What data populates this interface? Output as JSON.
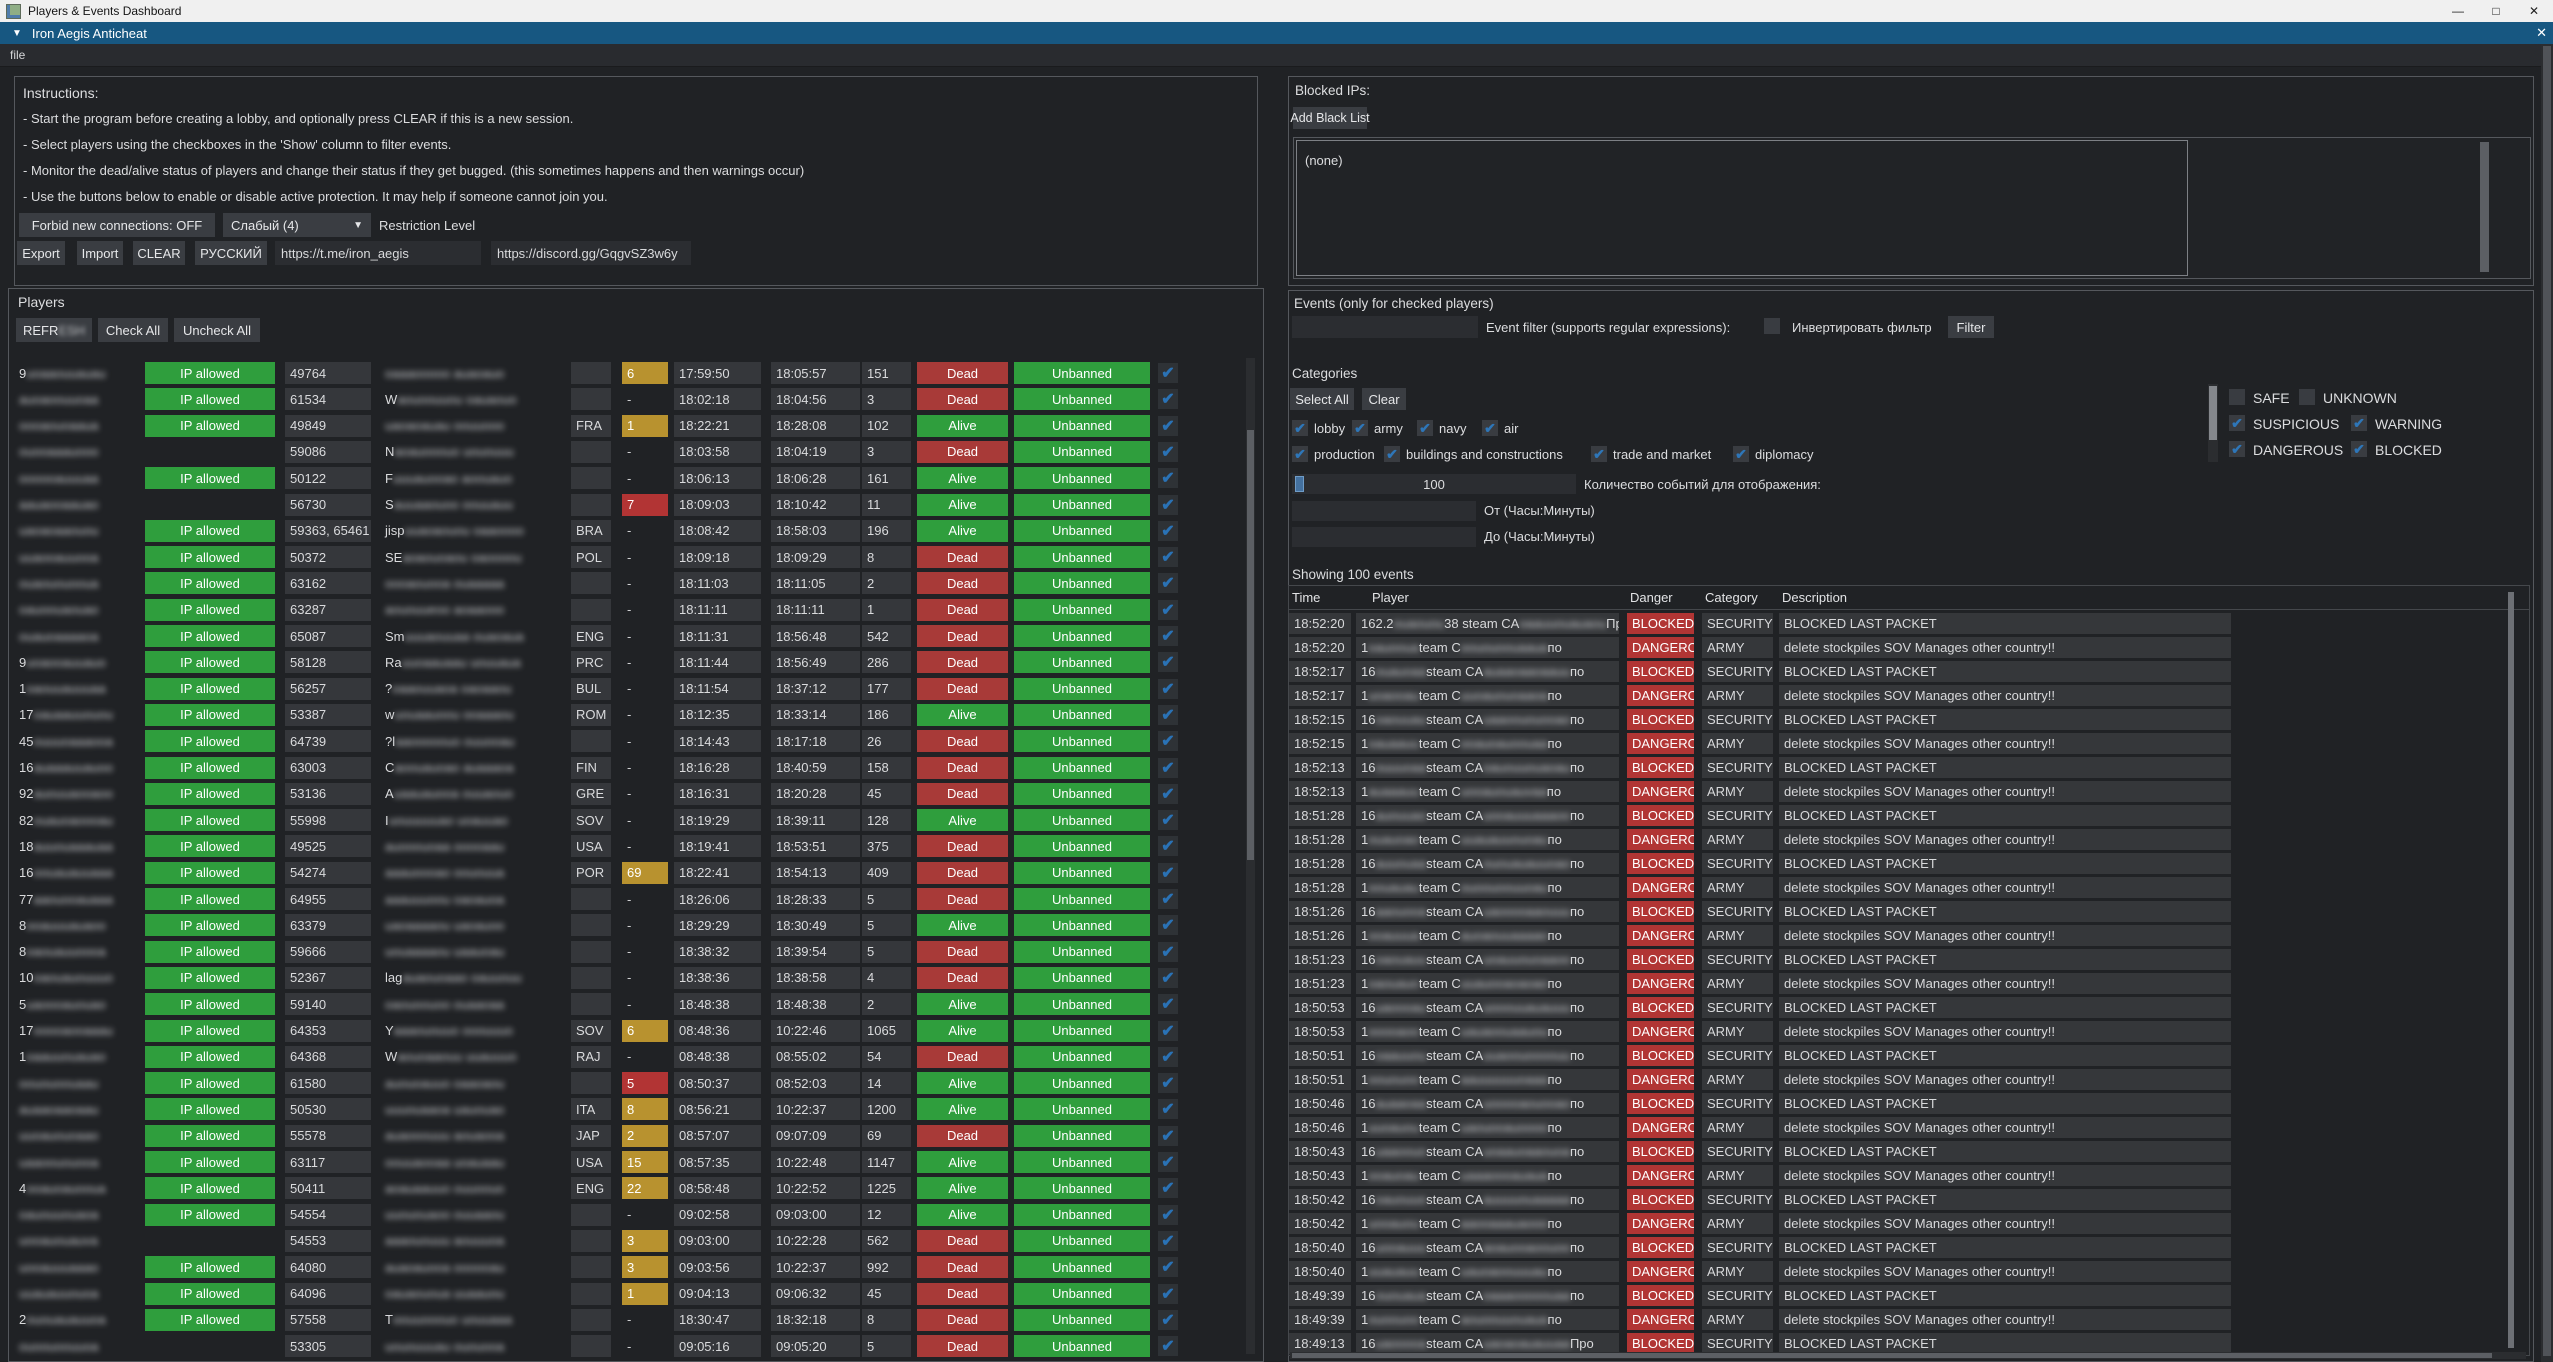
{
  "window": {
    "title": "Players & Events Dashboard",
    "app_header": "Iron Aegis Anticheat",
    "menu_file": "file",
    "minimize": "—",
    "maximize": "□",
    "close": "✕"
  },
  "instructions": {
    "title": "Instructions:",
    "lines": [
      "- Start the program before creating a lobby, and optionally press CLEAR if this is a new session.",
      "- Select players using the checkboxes in the 'Show' column to filter events.",
      "- Monitor the dead/alive status of players and change their status if they get bugged. (this sometimes happens and then warnings occur)",
      "- Use the buttons below to enable or disable active protection. It may help if someone cannot join you."
    ],
    "forbid_button": "Forbid new connections: OFF",
    "restriction_value": "Слабый (4)",
    "restriction_label": "Restriction Level",
    "buttons": [
      "Export",
      "Import",
      "CLEAR",
      "РУССКИЙ"
    ],
    "links": [
      "https://t.me/iron_aegis",
      "https://discord.gg/GqgvSZ3w6y"
    ]
  },
  "players_panel": {
    "title": "Players",
    "refresh_visible": "REFR",
    "refresh_blurred": "ESH",
    "check_all": "Check All",
    "uncheck_all": "Uncheck All",
    "ip_allowed_label": "IP allowed",
    "unbanned_label": "Unbanned",
    "rows": [
      {
        "p": "9",
        "id": "49764",
        "c": "",
        "w": "6",
        "wl": "y",
        "t1": "17:59:50",
        "t2": "18:05:57",
        "n": "151",
        "s": "Dead",
        "ip": true
      },
      {
        "id": "61534",
        "q": "W",
        "c": "",
        "w": "-",
        "t1": "18:02:18",
        "t2": "18:04:56",
        "n": "3",
        "s": "Dead",
        "ip": true
      },
      {
        "id": "49849",
        "c": "FRA",
        "w": "1",
        "wl": "y",
        "t1": "18:22:21",
        "t2": "18:28:08",
        "n": "102",
        "s": "Alive",
        "ip": true
      },
      {
        "id": "59086",
        "q": "N",
        "c": "",
        "w": "-",
        "t1": "18:03:58",
        "t2": "18:04:19",
        "n": "3",
        "s": "Dead",
        "ip": false
      },
      {
        "id": "50122",
        "q": "F",
        "c": "",
        "w": "-",
        "t1": "18:06:13",
        "t2": "18:06:28",
        "n": "161",
        "s": "Alive",
        "ip": true
      },
      {
        "id": "56730",
        "q": "S",
        "c": "",
        "w": "7",
        "wl": "r",
        "t1": "18:09:03",
        "t2": "18:10:42",
        "n": "11",
        "s": "Alive",
        "ip": false
      },
      {
        "id": "59363, 65461",
        "q": "jisp",
        "c": "BRA",
        "w": "-",
        "t1": "18:08:42",
        "t2": "18:58:03",
        "n": "196",
        "s": "Alive",
        "ip": true
      },
      {
        "id": "50372",
        "q": "SE",
        "c": "POL",
        "w": "-",
        "t1": "18:09:18",
        "t2": "18:09:29",
        "n": "8",
        "s": "Dead",
        "ip": true
      },
      {
        "id": "63162",
        "c": "",
        "w": "-",
        "t1": "18:11:03",
        "t2": "18:11:05",
        "n": "2",
        "s": "Dead",
        "ip": true
      },
      {
        "id": "63287",
        "c": "",
        "w": "-",
        "t1": "18:11:11",
        "t2": "18:11:11",
        "n": "1",
        "s": "Dead",
        "ip": true
      },
      {
        "id": "65087",
        "q": "Sm",
        "c": "ENG",
        "w": "-",
        "t1": "18:11:31",
        "t2": "18:56:48",
        "n": "542",
        "s": "Dead",
        "ip": true
      },
      {
        "p": "9",
        "id": "58128",
        "q": "Ra",
        "c": "PRC",
        "w": "-",
        "t1": "18:11:44",
        "t2": "18:56:49",
        "n": "286",
        "s": "Dead",
        "ip": true
      },
      {
        "p": "1",
        "id": "56257",
        "q": "?",
        "c": "BUL",
        "w": "-",
        "t1": "18:11:54",
        "t2": "18:37:12",
        "n": "177",
        "s": "Dead",
        "ip": true
      },
      {
        "p": "17",
        "id": "53387",
        "q": "w",
        "c": "ROM",
        "w": "-",
        "t1": "18:12:35",
        "t2": "18:33:14",
        "n": "186",
        "s": "Alive",
        "ip": true
      },
      {
        "p": "45",
        "id": "64739",
        "q": "?l",
        "c": "",
        "w": "-",
        "t1": "18:14:43",
        "t2": "18:17:18",
        "n": "26",
        "s": "Dead",
        "ip": true
      },
      {
        "p": "16",
        "id": "63003",
        "q": "C",
        "c": "FIN",
        "w": "-",
        "t1": "18:16:28",
        "t2": "18:40:59",
        "n": "158",
        "s": "Dead",
        "ip": true
      },
      {
        "p": "92",
        "id": "53136",
        "q": "A",
        "c": "GRE",
        "w": "-",
        "t1": "18:16:31",
        "t2": "18:20:28",
        "n": "45",
        "s": "Dead",
        "ip": true
      },
      {
        "p": "82",
        "id": "55998",
        "q": "I",
        "c": "SOV",
        "w": "-",
        "t1": "18:19:29",
        "t2": "18:39:11",
        "n": "128",
        "s": "Alive",
        "ip": true
      },
      {
        "p": "18",
        "id": "49525",
        "c": "USA",
        "w": "-",
        "t1": "18:19:41",
        "t2": "18:53:51",
        "n": "375",
        "s": "Dead",
        "ip": true
      },
      {
        "p": "16",
        "id": "54274",
        "c": "POR",
        "w": "69",
        "wl": "y",
        "t1": "18:22:41",
        "t2": "18:54:13",
        "n": "409",
        "s": "Dead",
        "ip": true
      },
      {
        "p": "77",
        "id": "64955",
        "c": "",
        "w": "-",
        "t1": "18:26:06",
        "t2": "18:28:33",
        "n": "5",
        "s": "Dead",
        "ip": true
      },
      {
        "p": "8",
        "id": "63379",
        "c": "",
        "w": "-",
        "t1": "18:29:29",
        "t2": "18:30:49",
        "n": "5",
        "s": "Alive",
        "ip": true
      },
      {
        "p": "8",
        "id": "59666",
        "c": "",
        "w": "-",
        "t1": "18:38:32",
        "t2": "18:39:54",
        "n": "5",
        "s": "Dead",
        "ip": true
      },
      {
        "p": "10",
        "id": "52367",
        "q": "lag",
        "c": "",
        "w": "-",
        "t1": "18:38:36",
        "t2": "18:38:58",
        "n": "4",
        "s": "Dead",
        "ip": true
      },
      {
        "p": "5",
        "id": "59140",
        "c": "",
        "w": "-",
        "t1": "18:48:38",
        "t2": "18:48:38",
        "n": "2",
        "s": "Alive",
        "ip": true
      },
      {
        "p": "17",
        "id": "64353",
        "q": "Y",
        "c": "SOV",
        "w": "6",
        "wl": "y",
        "t1": "08:48:36",
        "t2": "10:22:46",
        "n": "1065",
        "s": "Alive",
        "ip": true
      },
      {
        "p": "1",
        "id": "64368",
        "q": "W",
        "c": "RAJ",
        "w": "-",
        "t1": "08:48:38",
        "t2": "08:55:02",
        "n": "54",
        "s": "Dead",
        "ip": true
      },
      {
        "id": "61580",
        "c": "",
        "w": "5",
        "wl": "r",
        "t1": "08:50:37",
        "t2": "08:52:03",
        "n": "14",
        "s": "Alive",
        "ip": true
      },
      {
        "id": "50530",
        "c": "ITA",
        "w": "8",
        "wl": "y",
        "t1": "08:56:21",
        "t2": "10:22:37",
        "n": "1200",
        "s": "Alive",
        "ip": true
      },
      {
        "id": "55578",
        "c": "JAP",
        "w": "2",
        "wl": "y",
        "t1": "08:57:07",
        "t2": "09:07:09",
        "n": "69",
        "s": "Dead",
        "ip": true
      },
      {
        "id": "63117",
        "c": "USA",
        "w": "15",
        "wl": "y",
        "t1": "08:57:35",
        "t2": "10:22:48",
        "n": "1147",
        "s": "Alive",
        "ip": true
      },
      {
        "p": "4",
        "id": "50411",
        "c": "ENG",
        "w": "22",
        "wl": "y",
        "t1": "08:58:48",
        "t2": "10:22:52",
        "n": "1225",
        "s": "Alive",
        "ip": true
      },
      {
        "id": "54554",
        "c": "",
        "w": "-",
        "t1": "09:02:58",
        "t2": "09:03:00",
        "n": "12",
        "s": "Alive",
        "ip": true
      },
      {
        "id": "54553",
        "c": "",
        "w": "3",
        "wl": "y",
        "t1": "09:03:00",
        "t2": "10:22:28",
        "n": "562",
        "s": "Dead",
        "ip": false
      },
      {
        "id": "64080",
        "c": "",
        "w": "3",
        "wl": "y",
        "t1": "09:03:56",
        "t2": "10:22:37",
        "n": "992",
        "s": "Dead",
        "ip": true
      },
      {
        "id": "64096",
        "c": "",
        "w": "1",
        "wl": "y",
        "t1": "09:04:13",
        "t2": "09:06:32",
        "n": "45",
        "s": "Dead",
        "ip": true
      },
      {
        "p": "2",
        "id": "57558",
        "q": "T",
        "c": "",
        "w": "-",
        "t1": "18:30:47",
        "t2": "18:32:18",
        "n": "8",
        "s": "Dead",
        "ip": true
      },
      {
        "id": "53305",
        "c": "",
        "w": "-",
        "t1": "09:05:16",
        "t2": "09:05:20",
        "n": "5",
        "s": "Dead",
        "ip": false
      }
    ]
  },
  "blocked_ips": {
    "label": "Blocked IPs:",
    "add_button": "Add Black List",
    "empty_text": "(none)"
  },
  "events_panel": {
    "title": "Events (only for checked players)",
    "filter_label": "Event filter (supports regular expressions):",
    "invert_label": "Инвертировать фильтр",
    "filter_button": "Filter",
    "categories_label": "Categories",
    "select_all": "Select All",
    "clear": "Clear",
    "categories": [
      {
        "label": "lobby",
        "checked": true
      },
      {
        "label": "army",
        "checked": true
      },
      {
        "label": "navy",
        "checked": true
      },
      {
        "label": "air",
        "checked": true
      },
      {
        "label": "production",
        "checked": true
      },
      {
        "label": "buildings and constructions",
        "checked": true
      },
      {
        "label": "trade and market",
        "checked": true
      },
      {
        "label": "diplomacy",
        "checked": true
      }
    ],
    "severities": [
      {
        "label": "SAFE",
        "checked": false
      },
      {
        "label": "UNKNOWN",
        "checked": false
      },
      {
        "label": "SUSPICIOUS",
        "checked": true
      },
      {
        "label": "WARNING",
        "checked": true
      },
      {
        "label": "DANGEROUS",
        "checked": true
      },
      {
        "label": "BLOCKED",
        "checked": true
      }
    ],
    "count_value": "100",
    "count_label": "Количество событий для отображения:",
    "from_label": "От (Часы:Минуты)",
    "to_label": "До (Часы:Минуты)",
    "showing": "Showing 100 events",
    "columns": [
      "Time",
      "Player",
      "Danger",
      "Category",
      "Description"
    ],
    "player_defaults": {
      "blocked": {
        "pa": "16",
        "pc": "steam CA",
        "pe": "по"
      },
      "danger": {
        "pa": "1",
        "pc": "team C",
        "pe": "по"
      }
    },
    "rows": [
      {
        "t": "18:52:20",
        "d": "BLOCKED",
        "cat": "SECURITY",
        "desc": "BLOCKED LAST PACKET",
        "pa": "162.2",
        "pc": "38 steam CA",
        "pe": "Про"
      },
      {
        "t": "18:52:20",
        "d": "DANGERO",
        "cat": "ARMY",
        "desc": "delete stockpiles SOV Manages other country!!"
      },
      {
        "t": "18:52:17",
        "d": "BLOCKED",
        "cat": "SECURITY",
        "desc": "BLOCKED LAST PACKET"
      },
      {
        "t": "18:52:17",
        "d": "DANGERO",
        "cat": "ARMY",
        "desc": "delete stockpiles SOV Manages other country!!"
      },
      {
        "t": "18:52:15",
        "d": "BLOCKED",
        "cat": "SECURITY",
        "desc": "BLOCKED LAST PACKET"
      },
      {
        "t": "18:52:15",
        "d": "DANGERO",
        "cat": "ARMY",
        "desc": "delete stockpiles SOV Manages other country!!"
      },
      {
        "t": "18:52:13",
        "d": "BLOCKED",
        "cat": "SECURITY",
        "desc": "BLOCKED LAST PACKET"
      },
      {
        "t": "18:52:13",
        "d": "DANGERO",
        "cat": "ARMY",
        "desc": "delete stockpiles SOV Manages other country!!"
      },
      {
        "t": "18:51:28",
        "d": "BLOCKED",
        "cat": "SECURITY",
        "desc": "BLOCKED LAST PACKET"
      },
      {
        "t": "18:51:28",
        "d": "DANGERO",
        "cat": "ARMY",
        "desc": "delete stockpiles SOV Manages other country!!"
      },
      {
        "t": "18:51:28",
        "d": "BLOCKED",
        "cat": "SECURITY",
        "desc": "BLOCKED LAST PACKET"
      },
      {
        "t": "18:51:28",
        "d": "DANGERO",
        "cat": "ARMY",
        "desc": "delete stockpiles SOV Manages other country!!"
      },
      {
        "t": "18:51:26",
        "d": "BLOCKED",
        "cat": "SECURITY",
        "desc": "BLOCKED LAST PACKET"
      },
      {
        "t": "18:51:26",
        "d": "DANGERO",
        "cat": "ARMY",
        "desc": "delete stockpiles SOV Manages other country!!"
      },
      {
        "t": "18:51:23",
        "d": "BLOCKED",
        "cat": "SECURITY",
        "desc": "BLOCKED LAST PACKET"
      },
      {
        "t": "18:51:23",
        "d": "DANGERO",
        "cat": "ARMY",
        "desc": "delete stockpiles SOV Manages other country!!"
      },
      {
        "t": "18:50:53",
        "d": "BLOCKED",
        "cat": "SECURITY",
        "desc": "BLOCKED LAST PACKET"
      },
      {
        "t": "18:50:53",
        "d": "DANGERO",
        "cat": "ARMY",
        "desc": "delete stockpiles SOV Manages other country!!"
      },
      {
        "t": "18:50:51",
        "d": "BLOCKED",
        "cat": "SECURITY",
        "desc": "BLOCKED LAST PACKET"
      },
      {
        "t": "18:50:51",
        "d": "DANGERO",
        "cat": "ARMY",
        "desc": "delete stockpiles SOV Manages other country!!"
      },
      {
        "t": "18:50:46",
        "d": "BLOCKED",
        "cat": "SECURITY",
        "desc": "BLOCKED LAST PACKET"
      },
      {
        "t": "18:50:46",
        "d": "DANGERO",
        "cat": "ARMY",
        "desc": "delete stockpiles SOV Manages other country!!"
      },
      {
        "t": "18:50:43",
        "d": "BLOCKED",
        "cat": "SECURITY",
        "desc": "BLOCKED LAST PACKET"
      },
      {
        "t": "18:50:43",
        "d": "DANGERO",
        "cat": "ARMY",
        "desc": "delete stockpiles SOV Manages other country!!"
      },
      {
        "t": "18:50:42",
        "d": "BLOCKED",
        "cat": "SECURITY",
        "desc": "BLOCKED LAST PACKET"
      },
      {
        "t": "18:50:42",
        "d": "DANGERO",
        "cat": "ARMY",
        "desc": "delete stockpiles SOV Manages other country!!"
      },
      {
        "t": "18:50:40",
        "d": "BLOCKED",
        "cat": "SECURITY",
        "desc": "BLOCKED LAST PACKET"
      },
      {
        "t": "18:50:40",
        "d": "DANGERO",
        "cat": "ARMY",
        "desc": "delete stockpiles SOV Manages other country!!"
      },
      {
        "t": "18:49:39",
        "d": "BLOCKED",
        "cat": "SECURITY",
        "desc": "BLOCKED LAST PACKET"
      },
      {
        "t": "18:49:39",
        "d": "DANGERO",
        "cat": "ARMY",
        "desc": "delete stockpiles SOV Manages other country!!"
      },
      {
        "t": "18:49:13",
        "d": "BLOCKED",
        "cat": "SECURITY",
        "desc": "BLOCKED LAST PACKET",
        "pa": "16",
        "pc": "steam CA",
        "pe": "Про"
      }
    ]
  }
}
